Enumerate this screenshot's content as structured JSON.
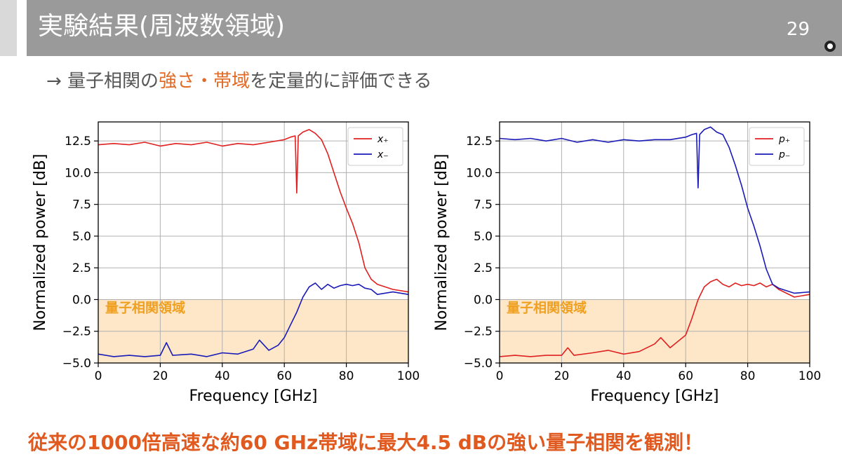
{
  "slide": {
    "title": "実験結果(周波数領域)",
    "page_number": "29",
    "subtitle_parts": [
      "→ 量子相関の",
      "強さ・帯域",
      "を定量的に評価できる"
    ],
    "conclusion": "従来の1000倍高速な約60 GHz帯域に最大4.5 dBの強い量子相関を観測！"
  },
  "colors": {
    "header_bg": "#9a9a9a",
    "accent": "#e06a26",
    "conclusion": "#e05a20",
    "region_fill": "#fde7c8",
    "region_label": "#f0a020",
    "series_red": "#e02020",
    "series_blue": "#1a1ab8"
  },
  "chart_data": [
    {
      "type": "line",
      "xlabel": "Frequency [GHz]",
      "ylabel": "Normalized power [dB]",
      "xlim": [
        0,
        100
      ],
      "ylim": [
        -5,
        14
      ],
      "xticks": [
        "0",
        "20",
        "40",
        "60",
        "80",
        "100"
      ],
      "yticks": [
        "−5.0",
        "−2.5",
        "0.0",
        "2.5",
        "5.0",
        "7.5",
        "10.0",
        "12.5"
      ],
      "grid": true,
      "legend_position": "top-right",
      "shaded_region": {
        "label": "量子相関領域",
        "y_range": [
          -5,
          0
        ]
      },
      "series": [
        {
          "name": "x₊",
          "color": "#e02020",
          "x": [
            0,
            5,
            10,
            15,
            20,
            25,
            30,
            35,
            40,
            45,
            50,
            55,
            60,
            62,
            63.5,
            64,
            64.5,
            66,
            68,
            70,
            72,
            74,
            76,
            78,
            80,
            82,
            84,
            86,
            88,
            90,
            95,
            100
          ],
          "y": [
            12.2,
            12.3,
            12.2,
            12.4,
            12.1,
            12.3,
            12.2,
            12.4,
            12.1,
            12.3,
            12.2,
            12.4,
            12.6,
            12.8,
            12.9,
            8.4,
            12.9,
            13.2,
            13.4,
            13.1,
            12.6,
            11.5,
            10.0,
            8.5,
            7.2,
            6.0,
            4.5,
            2.5,
            1.6,
            1.2,
            0.8,
            0.6
          ]
        },
        {
          "name": "x₋",
          "color": "#1a1ab8",
          "x": [
            0,
            5,
            10,
            15,
            20,
            22,
            24,
            30,
            35,
            40,
            45,
            50,
            52,
            55,
            58,
            60,
            62,
            64,
            66,
            68,
            70,
            72,
            74,
            76,
            78,
            80,
            82,
            84,
            86,
            88,
            90,
            95,
            100
          ],
          "y": [
            -4.3,
            -4.5,
            -4.4,
            -4.5,
            -4.4,
            -3.4,
            -4.4,
            -4.3,
            -4.5,
            -4.2,
            -4.3,
            -3.9,
            -3.2,
            -4.0,
            -3.6,
            -3.0,
            -2.0,
            -1.0,
            0.2,
            1.0,
            1.3,
            0.8,
            1.2,
            0.9,
            1.1,
            1.2,
            1.1,
            1.2,
            0.9,
            0.8,
            0.4,
            0.6,
            0.4
          ]
        }
      ]
    },
    {
      "type": "line",
      "xlabel": "Frequency [GHz]",
      "ylabel": "Normalized power [dB]",
      "xlim": [
        0,
        100
      ],
      "ylim": [
        -5,
        14
      ],
      "xticks": [
        "0",
        "20",
        "40",
        "60",
        "80",
        "100"
      ],
      "yticks": [
        "−5.0",
        "−2.5",
        "0.0",
        "2.5",
        "5.0",
        "7.5",
        "10.0",
        "12.5"
      ],
      "grid": true,
      "legend_position": "top-right",
      "shaded_region": {
        "label": "量子相関領域",
        "y_range": [
          -5,
          0
        ]
      },
      "series": [
        {
          "name": "p₊",
          "color": "#e02020",
          "x": [
            0,
            5,
            10,
            15,
            20,
            22,
            24,
            30,
            35,
            40,
            45,
            50,
            52,
            55,
            58,
            60,
            62,
            64,
            66,
            68,
            70,
            72,
            74,
            76,
            78,
            80,
            82,
            84,
            86,
            88,
            90,
            95,
            100
          ],
          "y": [
            -4.5,
            -4.4,
            -4.5,
            -4.4,
            -4.4,
            -3.8,
            -4.4,
            -4.2,
            -4.0,
            -4.3,
            -4.1,
            -3.5,
            -3.0,
            -3.8,
            -3.2,
            -2.8,
            -1.5,
            0.0,
            1.0,
            1.4,
            1.6,
            1.2,
            1.0,
            1.3,
            1.1,
            1.2,
            1.1,
            1.3,
            1.0,
            1.2,
            0.8,
            0.2,
            0.4
          ]
        },
        {
          "name": "p₋",
          "color": "#1a1ab8",
          "x": [
            0,
            5,
            10,
            15,
            20,
            25,
            30,
            35,
            40,
            45,
            50,
            55,
            60,
            62,
            63.5,
            64,
            64.5,
            66,
            68,
            70,
            72,
            74,
            76,
            78,
            80,
            82,
            84,
            86,
            88,
            90,
            95,
            100
          ],
          "y": [
            12.7,
            12.6,
            12.7,
            12.5,
            12.7,
            12.4,
            12.6,
            12.4,
            12.6,
            12.5,
            12.6,
            12.6,
            12.8,
            13.0,
            13.1,
            8.8,
            13.0,
            13.4,
            13.6,
            13.2,
            13.0,
            12.0,
            10.6,
            9.0,
            7.2,
            5.8,
            4.2,
            2.4,
            1.2,
            0.9,
            0.5,
            0.6
          ]
        }
      ]
    }
  ]
}
